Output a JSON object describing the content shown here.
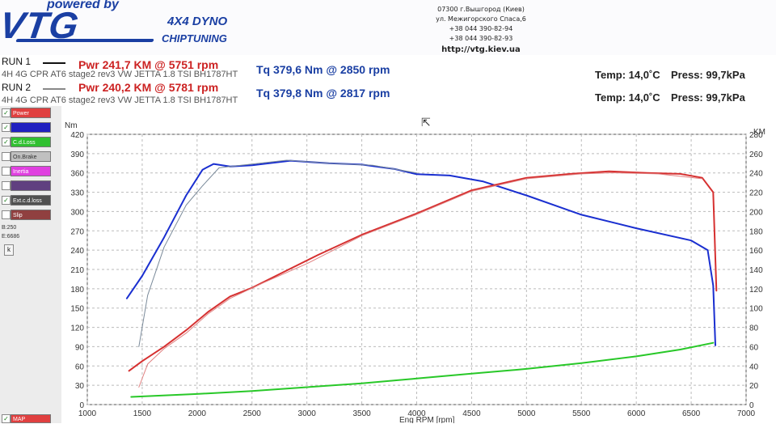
{
  "header": {
    "logo_small": "powered by",
    "logo_main": "VTG",
    "dyno_title": "4X4 DYNO",
    "dyno_subtitle": "CHIPTUNING",
    "contacts": {
      "line1": "07300 г.Вышгород (Киев)",
      "line2": "ул. Межигорского Спаса,6",
      "phone1": "+38 044 390-82-94",
      "phone2": "+38 044 390-82-93",
      "url": "http://vtg.kiev.ua"
    }
  },
  "runs": [
    {
      "label": "RUN 1",
      "pwr": "Pwr  241,7 KM @ 5751 rpm",
      "tq": "Tq 379,6 Nm @ 2850 rpm",
      "desc": "4H 4G CPR  AT6  stage2 rev3 VW JETTA 1.8 TSI BH1787HT",
      "temp": "Temp:  14,0˚C",
      "press": "Press:  99,7kPa"
    },
    {
      "label": "RUN 2",
      "pwr": "Pwr  240,2 KM @ 5781 rpm",
      "tq": "Tq 379,8 Nm @ 2817 rpm",
      "desc": "4H 4G CPR  AT6  stage2 rev3 VW JETTA 1.8 TSI BH1787HT",
      "temp": "Temp:  14,0˚C",
      "press": "Press:  99,7kPa"
    }
  ],
  "toolbar": {
    "items": [
      {
        "label": "Power",
        "color": "#e04040",
        "checked": true
      },
      {
        "label": "",
        "color": "#2020c0",
        "checked": true
      },
      {
        "label": "C.d.Loss",
        "color": "#30c030",
        "checked": true
      },
      {
        "label": "On.Brake",
        "color": "#c0c0c0",
        "checked": false
      },
      {
        "label": "Inertia",
        "color": "#e040e0",
        "checked": false
      },
      {
        "label": "",
        "color": "#604080",
        "checked": false
      },
      {
        "label": "Ext.c.d.loss",
        "color": "#505050",
        "checked": true
      },
      {
        "label": "Slip",
        "color": "#904040",
        "checked": false
      }
    ],
    "b_value": "B:250",
    "e_value": "E:6686",
    "k_button": "k",
    "map_label": "MAP"
  },
  "chart_data": {
    "type": "line",
    "xlabel": "Eng RPM [rpm]",
    "ylabel_left": "Nm",
    "ylabel_right": "KM",
    "xlim": [
      1000,
      7000
    ],
    "ylim_left": [
      0,
      420
    ],
    "ylim_right": [
      0,
      280
    ],
    "x_ticks": [
      1000,
      1500,
      2000,
      2500,
      3000,
      3500,
      4000,
      4500,
      5000,
      5500,
      6000,
      6500,
      7000
    ],
    "y_left_ticks": [
      0,
      30,
      60,
      90,
      120,
      150,
      180,
      210,
      240,
      270,
      300,
      330,
      360,
      390,
      420
    ],
    "y_right_ticks": [
      0,
      20,
      40,
      60,
      80,
      100,
      120,
      140,
      160,
      180,
      200,
      220,
      240,
      260,
      280
    ],
    "grid": true,
    "series": [
      {
        "axis": "left",
        "color": "#1a2fd0",
        "width": 2,
        "x": [
          1360,
          1500,
          1700,
          1900,
          2050,
          2150,
          2300,
          2500,
          2850,
          3200,
          3500,
          3800,
          4000,
          4300,
          4600,
          5000,
          5500,
          6000,
          6500,
          6650,
          6700,
          6720
        ],
        "y": [
          165,
          200,
          260,
          325,
          365,
          374,
          370,
          372,
          379,
          375,
          373,
          366,
          358,
          356,
          347,
          325,
          295,
          274,
          255,
          240,
          185,
          92
        ]
      },
      {
        "axis": "left",
        "color": "#7a8a9a",
        "width": 1,
        "x": [
          1470,
          1550,
          1700,
          1900,
          2050,
          2200,
          2400,
          2817,
          3200,
          3600,
          4000
        ],
        "y": [
          90,
          170,
          245,
          310,
          340,
          368,
          372,
          379.8,
          375,
          372,
          360
        ]
      },
      {
        "axis": "right",
        "color": "#d63030",
        "width": 2,
        "x": [
          1380,
          1500,
          1700,
          1900,
          2100,
          2300,
          2500,
          2800,
          3100,
          3500,
          4000,
          4500,
          5000,
          5400,
          5751,
          6100,
          6400,
          6600,
          6700,
          6730
        ],
        "y": [
          35,
          45,
          60,
          77,
          96,
          112,
          121,
          138,
          155,
          176,
          198,
          222,
          235,
          239,
          241.7,
          240,
          239,
          235,
          220,
          118
        ]
      },
      {
        "axis": "right",
        "color": "#e08080",
        "width": 1,
        "x": [
          1470,
          1550,
          1700,
          1900,
          2100,
          2300,
          2600,
          3000,
          3500,
          4000,
          4500,
          5000,
          5500,
          5781,
          6200,
          6600
        ],
        "y": [
          18,
          42,
          58,
          74,
          94,
          110,
          126,
          146,
          175,
          197,
          221,
          234,
          239,
          240.2,
          239,
          234
        ]
      },
      {
        "axis": "right",
        "color": "#28c828",
        "width": 2,
        "x": [
          1400,
          2000,
          2500,
          3000,
          3500,
          4000,
          4500,
          5000,
          5500,
          6000,
          6400,
          6700
        ],
        "y": [
          8,
          11,
          14,
          18,
          22,
          27,
          32,
          37,
          43,
          50,
          57,
          64
        ]
      }
    ]
  }
}
